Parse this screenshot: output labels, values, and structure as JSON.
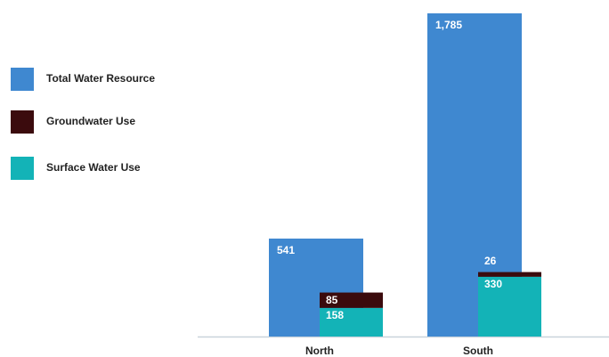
{
  "chart_data": {
    "type": "bar",
    "categories": [
      "North",
      "South"
    ],
    "series": [
      {
        "name": "Total Water Resource",
        "color": "#3f88d0",
        "values": [
          541,
          1785
        ],
        "value_labels": [
          "541",
          "1,785"
        ]
      },
      {
        "name": "Groundwater Use",
        "color": "#3b0b0d",
        "values": [
          85,
          26
        ]
      },
      {
        "name": "Surface Water Use",
        "color": "#13b3b7",
        "values": [
          158,
          330
        ]
      }
    ]
  }
}
